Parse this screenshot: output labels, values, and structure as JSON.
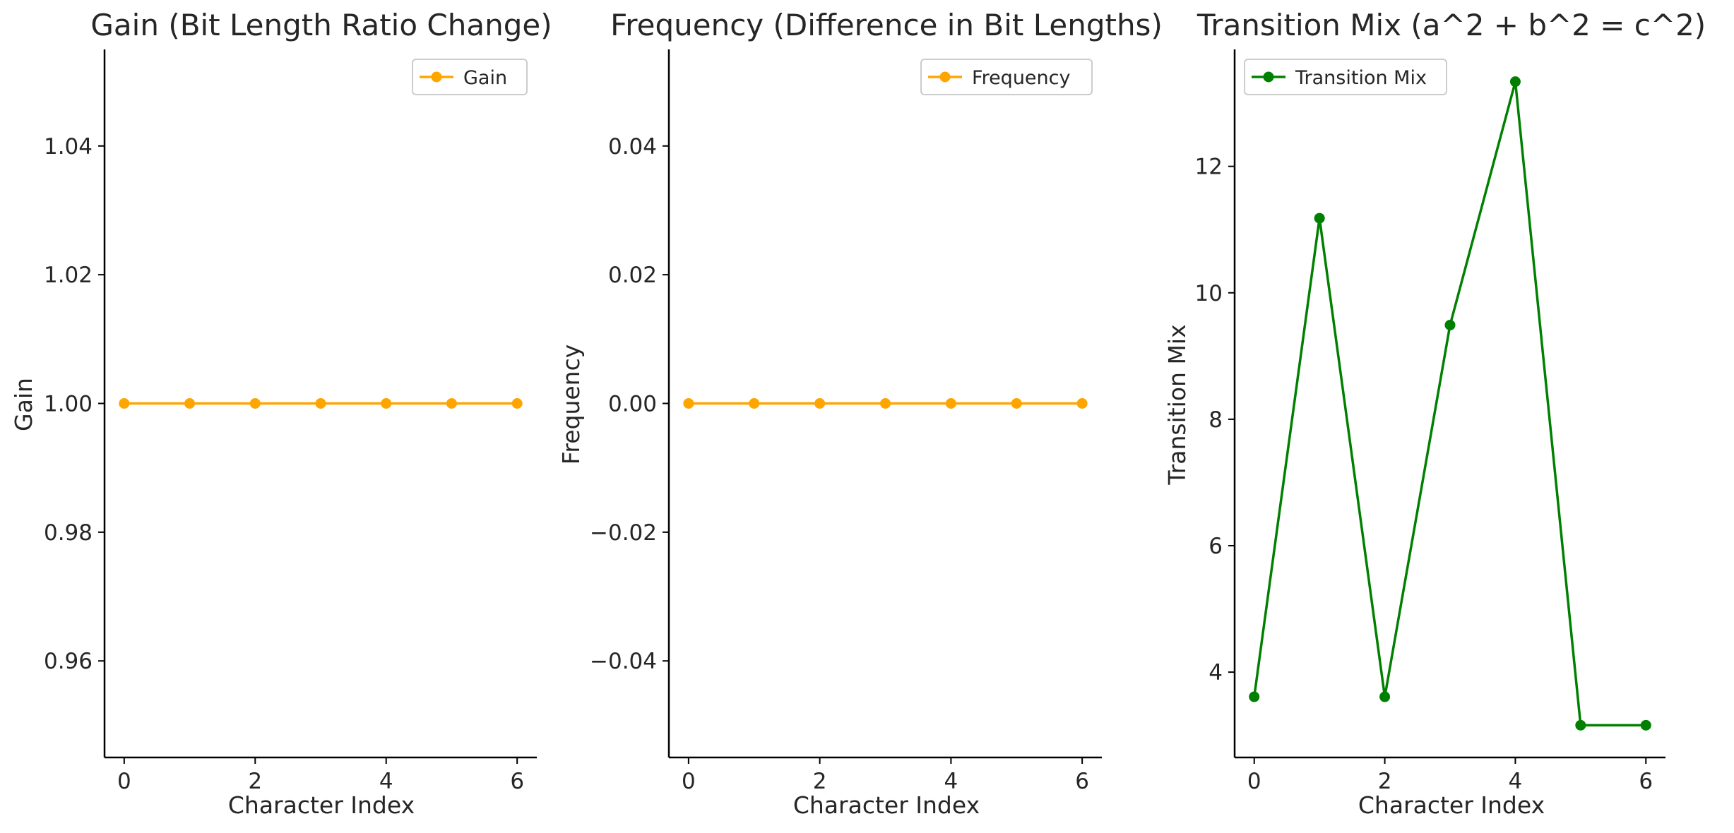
{
  "chart_data": [
    {
      "type": "line",
      "title": "Gain (Bit Length Ratio Change)",
      "xlabel": "Character Index",
      "ylabel": "Gain",
      "x": [
        0,
        1,
        2,
        3,
        4,
        5,
        6
      ],
      "series": [
        {
          "name": "Gain",
          "color": "#FFA500",
          "values": [
            1.0,
            1.0,
            1.0,
            1.0,
            1.0,
            1.0,
            1.0
          ]
        }
      ],
      "xlim": [
        -0.3,
        6.3
      ],
      "ylim": [
        0.945,
        1.055
      ],
      "xticks": [
        0,
        2,
        4,
        6
      ],
      "xtick_labels": [
        "0",
        "2",
        "4",
        "6"
      ],
      "yticks": [
        0.96,
        0.98,
        1.0,
        1.02,
        1.04
      ],
      "ytick_labels": [
        "0.96",
        "0.98",
        "1.00",
        "1.02",
        "1.04"
      ],
      "legend": "top-right",
      "grid": false
    },
    {
      "type": "line",
      "title": "Frequency (Difference in Bit Lengths)",
      "xlabel": "Character Index",
      "ylabel": "Frequency",
      "x": [
        0,
        1,
        2,
        3,
        4,
        5,
        6
      ],
      "series": [
        {
          "name": "Frequency",
          "color": "#FFA500",
          "values": [
            0,
            0,
            0,
            0,
            0,
            0,
            0
          ]
        }
      ],
      "xlim": [
        -0.3,
        6.3
      ],
      "ylim": [
        -0.055,
        0.055
      ],
      "xticks": [
        0,
        2,
        4,
        6
      ],
      "xtick_labels": [
        "0",
        "2",
        "4",
        "6"
      ],
      "yticks": [
        -0.04,
        -0.02,
        0.0,
        0.02,
        0.04
      ],
      "ytick_labels": [
        "−0.04",
        "−0.02",
        "0.00",
        "0.02",
        "0.04"
      ],
      "legend": "top-right",
      "grid": false
    },
    {
      "type": "line",
      "title": "Transition Mix (a^2 + b^2 = c^2)",
      "xlabel": "Character Index",
      "ylabel": "Transition Mix",
      "x": [
        0,
        1,
        2,
        3,
        4,
        5,
        6
      ],
      "series": [
        {
          "name": "Transition Mix",
          "color": "#008000",
          "values": [
            3.61,
            11.18,
            3.61,
            9.49,
            13.34,
            3.16,
            3.16
          ]
        }
      ],
      "xlim": [
        -0.3,
        6.3
      ],
      "ylim": [
        2.65,
        13.85
      ],
      "xticks": [
        0,
        2,
        4,
        6
      ],
      "xtick_labels": [
        "0",
        "2",
        "4",
        "6"
      ],
      "yticks": [
        4,
        6,
        8,
        10,
        12
      ],
      "ytick_labels": [
        "4",
        "6",
        "8",
        "10",
        "12"
      ],
      "legend": "top-left",
      "grid": false
    }
  ]
}
